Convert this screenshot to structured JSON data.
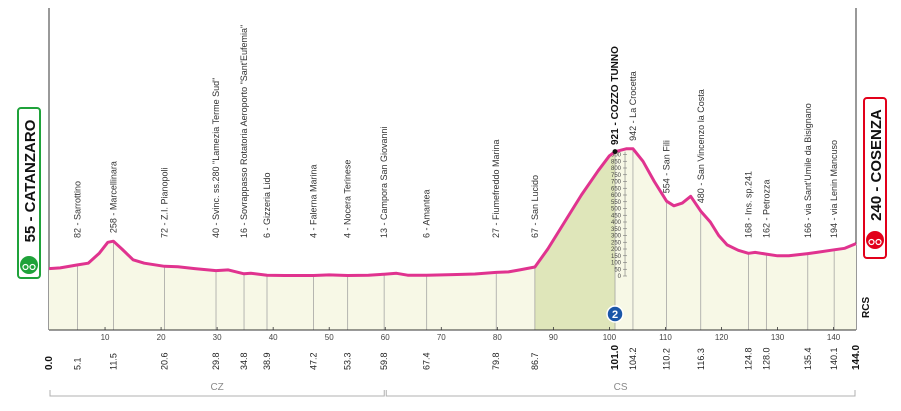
{
  "stage": {
    "start": {
      "label": "55 - CATANZARO",
      "color": "#1fa23a"
    },
    "finish": {
      "label": "240 - COSENZA",
      "color": "#e2001a"
    }
  },
  "chart_data": {
    "type": "area",
    "xlabel": "",
    "ylabel": "",
    "xlim": [
      0,
      144
    ],
    "ylim": [
      0,
      1000
    ],
    "profile": [
      [
        0,
        55
      ],
      [
        2,
        60
      ],
      [
        5.1,
        82
      ],
      [
        7,
        95
      ],
      [
        9,
        170
      ],
      [
        10.5,
        250
      ],
      [
        11.5,
        258
      ],
      [
        13,
        200
      ],
      [
        15,
        120
      ],
      [
        17,
        95
      ],
      [
        20.6,
        72
      ],
      [
        23,
        68
      ],
      [
        26,
        55
      ],
      [
        29.8,
        40
      ],
      [
        32,
        45
      ],
      [
        34.8,
        16
      ],
      [
        36,
        20
      ],
      [
        38.9,
        6
      ],
      [
        42,
        4
      ],
      [
        47.2,
        4
      ],
      [
        50,
        8
      ],
      [
        53.3,
        4
      ],
      [
        57,
        6
      ],
      [
        59.8,
        13
      ],
      [
        62,
        20
      ],
      [
        64,
        6
      ],
      [
        67.4,
        6
      ],
      [
        72,
        10
      ],
      [
        76,
        15
      ],
      [
        79.8,
        27
      ],
      [
        82,
        30
      ],
      [
        84,
        45
      ],
      [
        86.7,
        67
      ],
      [
        89,
        200
      ],
      [
        92,
        400
      ],
      [
        95,
        600
      ],
      [
        98,
        780
      ],
      [
        100,
        890
      ],
      [
        101,
        921
      ],
      [
        103,
        942
      ],
      [
        104.2,
        942
      ],
      [
        106,
        850
      ],
      [
        108,
        700
      ],
      [
        110.2,
        554
      ],
      [
        111.5,
        520
      ],
      [
        113,
        540
      ],
      [
        114.5,
        590
      ],
      [
        116.3,
        480
      ],
      [
        118,
        400
      ],
      [
        119.5,
        300
      ],
      [
        121,
        230
      ],
      [
        123,
        190
      ],
      [
        124.8,
        168
      ],
      [
        126,
        175
      ],
      [
        128,
        162
      ],
      [
        130,
        150
      ],
      [
        132,
        150
      ],
      [
        135.4,
        166
      ],
      [
        137,
        175
      ],
      [
        140.1,
        194
      ],
      [
        142,
        205
      ],
      [
        144,
        240
      ]
    ],
    "km_markers": [
      "0.0",
      "5.1",
      "11.5",
      "20.6",
      "29.8",
      "34.8",
      "38.9",
      "47.2",
      "53.3",
      "59.8",
      "67.4",
      "79.8",
      "86.7",
      "101.0",
      "104.2",
      "110.2",
      "116.3",
      "124.8",
      "128.0",
      "135.4",
      "140.1",
      "144.0"
    ],
    "km_ticks": [
      "10",
      "20",
      "30",
      "40",
      "50",
      "60",
      "70",
      "80",
      "90",
      "100",
      "110",
      "120",
      "130",
      "140"
    ],
    "waypoints": [
      {
        "km": 5.1,
        "alt": 82,
        "label": "82 - Sarrottino"
      },
      {
        "km": 11.5,
        "alt": 258,
        "label": "258 - Marcellinara"
      },
      {
        "km": 20.6,
        "alt": 72,
        "label": "72 - Z.I. Pianopoli"
      },
      {
        "km": 29.8,
        "alt": 40,
        "label": "40 - Svinc. ss.280 \"Lamezia Terme Sud\""
      },
      {
        "km": 34.8,
        "alt": 16,
        "label": "16 - Sovrappasso Rotatoria Aeroporto \"Sant'Eufemia\""
      },
      {
        "km": 38.9,
        "alt": 6,
        "label": "6 - Gizzeria Lido"
      },
      {
        "km": 47.2,
        "alt": 4,
        "label": "4 - Falerna Marina"
      },
      {
        "km": 53.3,
        "alt": 4,
        "label": "4 - Nocera Terinese"
      },
      {
        "km": 59.8,
        "alt": 13,
        "label": "13 - Campora San Giovanni"
      },
      {
        "km": 67.4,
        "alt": 6,
        "label": "6 - Amantea"
      },
      {
        "km": 79.8,
        "alt": 27,
        "label": "27 - Fiumefreddo Marina"
      },
      {
        "km": 86.7,
        "alt": 67,
        "label": "67 - San Lucido"
      },
      {
        "km": 101.0,
        "alt": 921,
        "label": "921 - COZZO TUNNO",
        "summit": true
      },
      {
        "km": 104.2,
        "alt": 942,
        "label": "942 - La Crocetta"
      },
      {
        "km": 110.2,
        "alt": 554,
        "label": "554 - San Fili"
      },
      {
        "km": 116.3,
        "alt": 480,
        "label": "480 - San Vincenzo la Costa"
      },
      {
        "km": 124.8,
        "alt": 168,
        "label": "168 - Ins. sp.241"
      },
      {
        "km": 128.0,
        "alt": 162,
        "label": "162 - Petrozza"
      },
      {
        "km": 135.4,
        "alt": 166,
        "label": "166 - via Sant'Umile da Bisignano"
      },
      {
        "km": 140.1,
        "alt": 194,
        "label": "194 - via Lenin Mancuso"
      }
    ],
    "climb": {
      "km_start": 86.7,
      "km_end": 101.0,
      "category": "2",
      "color": "#1a56a8"
    },
    "climb_altitude_ticks": [
      "900",
      "850",
      "800",
      "750",
      "700",
      "650",
      "600",
      "550",
      "500",
      "450",
      "400",
      "350",
      "300",
      "250",
      "200",
      "150",
      "100",
      "50",
      "0"
    ],
    "regions": [
      {
        "label": "CZ",
        "km_start": 0,
        "km_end": 60
      },
      {
        "label": "CS",
        "km_start": 60,
        "km_end": 144
      }
    ],
    "logo_text": "RCS",
    "colors": {
      "line": "#e0338f",
      "fill": "#f7f8e6",
      "climb_fill": "#dfe6ba"
    }
  }
}
